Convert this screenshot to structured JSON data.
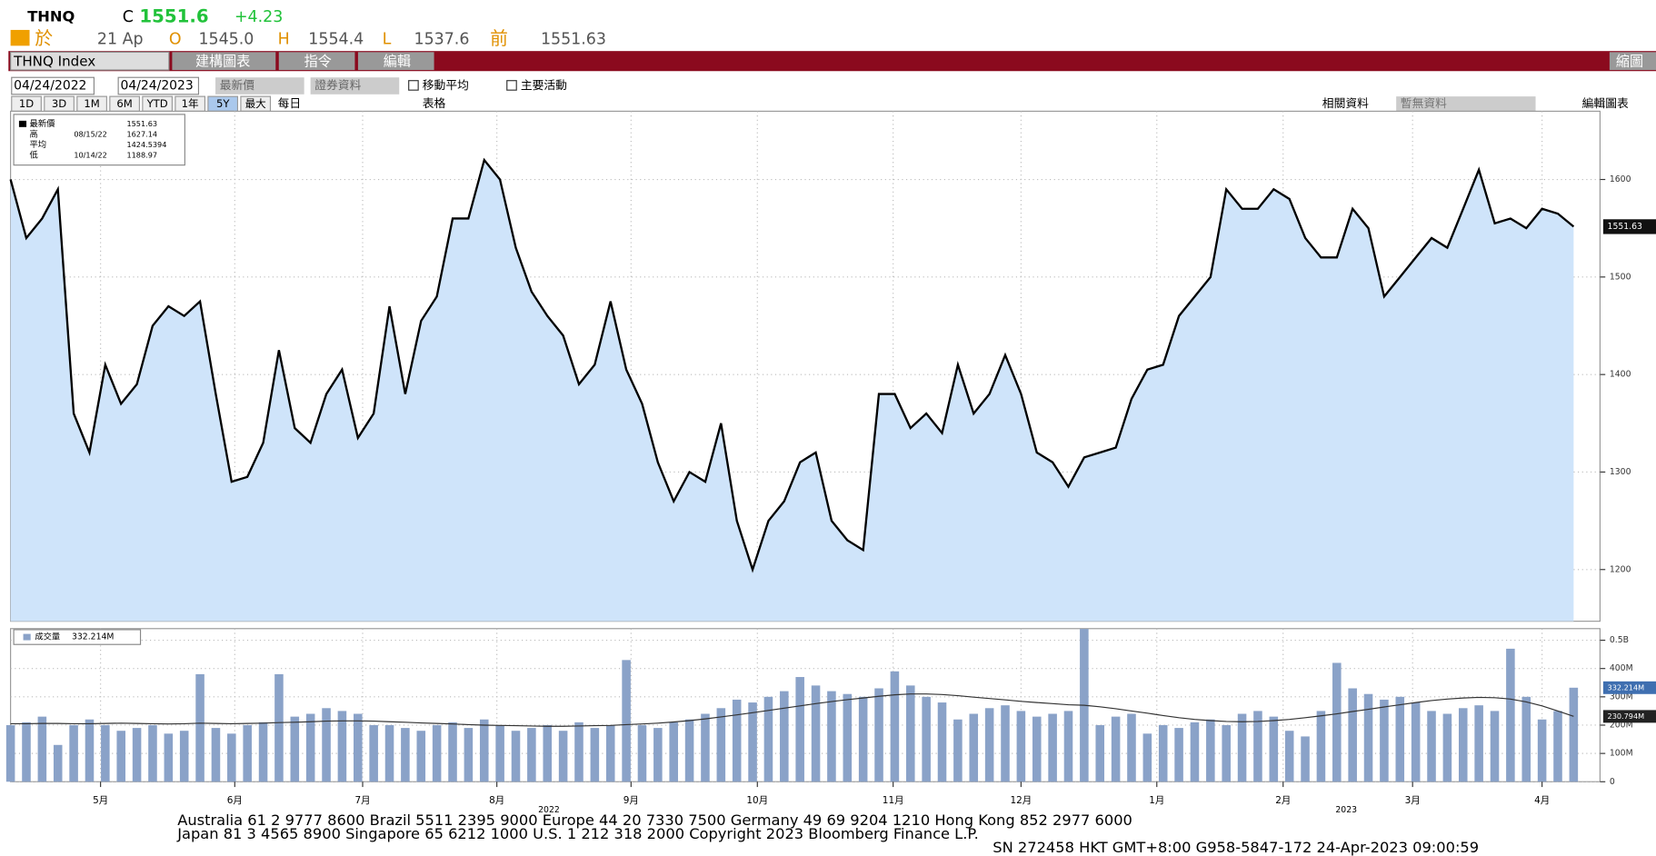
{
  "header": {
    "ticker": "THNQ",
    "c": "C",
    "last": "1551.6",
    "change": "+4.23",
    "at": "於",
    "date": "21 Ap",
    "o": "O",
    "open": "1545.0",
    "h": "H",
    "high": "1554.4",
    "l": "L",
    "low": "1537.6",
    "prev_label": "前",
    "prev": "1551.63"
  },
  "toolbar": {
    "security": "THNQ Index",
    "menus": [
      "建構圖表",
      "指令",
      "編輯"
    ],
    "right": "縮圖"
  },
  "controls": {
    "start": "04/24/2022",
    "end": "04/24/2023",
    "field": "最新價",
    "source": "證券資料",
    "checks": [
      "移動平均",
      "主要活動"
    ],
    "ranges": [
      "1D",
      "3D",
      "1M",
      "6M",
      "YTD",
      "1年",
      "5Y",
      "最大"
    ],
    "period": "每日",
    "table": "表格",
    "related": "相關資料",
    "no_data": "暫無資料",
    "edit": "編輯圖表"
  },
  "chart_data": [
    {
      "type": "line",
      "series": [
        {
          "name": "最新價",
          "color": "#000000",
          "fill": "#cfe4fa",
          "values": [
            1600,
            1540,
            1560,
            1590,
            1360,
            1320,
            1410,
            1370,
            1390,
            1450,
            1470,
            1460,
            1475,
            1380,
            1290,
            1295,
            1330,
            1425,
            1345,
            1330,
            1380,
            1405,
            1335,
            1360,
            1470,
            1380,
            1455,
            1480,
            1560,
            1560,
            1620,
            1600,
            1530,
            1485,
            1460,
            1440,
            1390,
            1410,
            1475,
            1405,
            1370,
            1310,
            1270,
            1300,
            1290,
            1350,
            1250,
            1200,
            1250,
            1270,
            1310,
            1320,
            1250,
            1230,
            1220,
            1380,
            1380,
            1345,
            1360,
            1340,
            1410,
            1360,
            1380,
            1420,
            1380,
            1320,
            1310,
            1285,
            1315,
            1320,
            1325,
            1375,
            1405,
            1410,
            1460,
            1480,
            1500,
            1590,
            1570,
            1570,
            1590,
            1580,
            1540,
            1520,
            1520,
            1570,
            1550,
            1480,
            1500,
            1520,
            1540,
            1530,
            1570,
            1610,
            1555,
            1560,
            1550,
            1570,
            1565,
            1551.63
          ]
        }
      ],
      "last_label": "1551.63",
      "legend": [
        {
          "label": "最新價",
          "value": "1551.63"
        },
        {
          "label": "高",
          "date": "08/15/22",
          "value": "1627.14"
        },
        {
          "label": "平均",
          "value": "1424.5394"
        },
        {
          "label": "低",
          "date": "10/14/22",
          "value": "1188.97"
        }
      ],
      "xlim": [
        0,
        99
      ],
      "ylim": [
        1147,
        1670
      ],
      "yticks": [
        1200,
        1300,
        1400,
        1500,
        1600
      ],
      "grid": true
    },
    {
      "type": "bar",
      "series": [
        {
          "name": "成交量",
          "color": "#8aa2c8",
          "values": [
            200,
            210,
            230,
            130,
            200,
            220,
            200,
            180,
            190,
            200,
            170,
            180,
            380,
            190,
            170,
            200,
            210,
            380,
            230,
            240,
            260,
            250,
            240,
            200,
            200,
            190,
            180,
            200,
            210,
            190,
            220,
            200,
            180,
            190,
            200,
            180,
            210,
            190,
            200,
            430,
            200,
            190,
            210,
            220,
            240,
            260,
            290,
            280,
            300,
            320,
            370,
            340,
            320,
            310,
            300,
            330,
            390,
            340,
            300,
            280,
            220,
            240,
            260,
            270,
            250,
            230,
            240,
            250,
            540,
            200,
            230,
            240,
            170,
            200,
            190,
            210,
            220,
            200,
            240,
            250,
            230,
            180,
            160,
            250,
            420,
            330,
            310,
            290,
            300,
            280,
            250,
            240,
            260,
            270,
            250,
            470,
            300,
            220,
            250,
            332.214
          ]
        },
        {
          "color": "#333333",
          "values": [
            205,
            205,
            206,
            206,
            205,
            205,
            206,
            207,
            206,
            205,
            204,
            205,
            207,
            206,
            205,
            206,
            207,
            209,
            210,
            212,
            214,
            215,
            215,
            214,
            212,
            210,
            208,
            206,
            204,
            202,
            200,
            199,
            198,
            197,
            196,
            196,
            197,
            198,
            199,
            202,
            204,
            207,
            211,
            216,
            222,
            229,
            236,
            244,
            252,
            260,
            268,
            276,
            283,
            290,
            296,
            302,
            307,
            310,
            310,
            308,
            304,
            299,
            294,
            289,
            284,
            280,
            276,
            272,
            270,
            265,
            258,
            250,
            242,
            234,
            226,
            220,
            216,
            213,
            212,
            213,
            216,
            220,
            226,
            233,
            240,
            248,
            256,
            264,
            272,
            280,
            287,
            292,
            296,
            298,
            297,
            292,
            282,
            268,
            250,
            230.794
          ]
        }
      ],
      "last_labels": [
        "332.214M",
        "230.794M"
      ],
      "xlim": [
        0,
        99
      ],
      "ylim": [
        0,
        541
      ],
      "yticks": [
        0,
        {
          "value": 100,
          "label": "100M"
        },
        {
          "value": 200,
          "label": "200M"
        },
        {
          "value": 300,
          "label": "300M"
        },
        {
          "value": 400,
          "label": "400M"
        },
        {
          "value": 500,
          "label": "0.5B"
        }
      ],
      "xticks": [
        {
          "value": 5.7,
          "label": "5月"
        },
        {
          "value": 14.2,
          "label": "6月"
        },
        {
          "value": 22.3,
          "label": "7月"
        },
        {
          "value": 30.8,
          "label": "8月"
        },
        {
          "value": 39.3,
          "label": "9月"
        },
        {
          "value": 47.3,
          "label": "10月"
        },
        {
          "value": 55.9,
          "label": "11月"
        },
        {
          "value": 64.0,
          "label": "12月"
        },
        {
          "value": 72.6,
          "label": "1月"
        },
        {
          "value": 80.6,
          "label": "2月"
        },
        {
          "value": 88.8,
          "label": "3月"
        },
        {
          "value": 97.0,
          "label": "4月"
        }
      ],
      "years": [
        {
          "value": 34.1,
          "label": "2022"
        },
        {
          "value": 84.6,
          "label": "2023"
        }
      ],
      "grid": true
    }
  ],
  "footer": [
    "Australia 61 2 9777 8600 Brazil 5511 2395 9000 Europe 44 20 7330 7500 Germany 49 69 9204 1210 Hong Kong 852 2977 6000",
    "Japan 81 3 4565 8900       Singapore 65 6212 1000       U.S. 1 212 318 2000         Copyright 2023 Bloomberg Finance L.P.",
    "SN 272458 HKT  GMT+8:00 G958-5847-172 24-Apr-2023 09:00:59"
  ]
}
